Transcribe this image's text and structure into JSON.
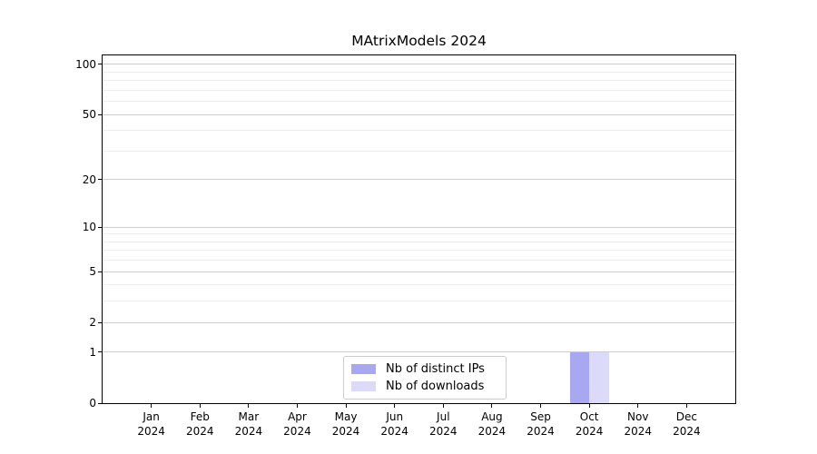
{
  "title": "MAtrixModels 2024",
  "chart_data": {
    "type": "bar",
    "title": "MAtrixModels 2024",
    "categories": [
      "Jan",
      "Feb",
      "Mar",
      "Apr",
      "May",
      "Jun",
      "Jul",
      "Aug",
      "Sep",
      "Oct",
      "Nov",
      "Dec"
    ],
    "category_year": "2024",
    "series": [
      {
        "name": "Nb of distinct IPs",
        "color": "#a8a8f2",
        "values": [
          0,
          0,
          0,
          0,
          0,
          0,
          0,
          0,
          0,
          1,
          0,
          0
        ]
      },
      {
        "name": "Nb of downloads",
        "color": "#dbdbf9",
        "values": [
          0,
          0,
          0,
          0,
          0,
          0,
          0,
          0,
          0,
          1,
          0,
          0
        ]
      }
    ],
    "yscale": "log1p",
    "ylim": [
      0,
      113
    ],
    "y_major_ticks": [
      0,
      1,
      2,
      5,
      10,
      20,
      50,
      100
    ],
    "y_minor_ticks": [
      3,
      4,
      6,
      7,
      8,
      9,
      30,
      40,
      60,
      70,
      80,
      90
    ],
    "grid": true,
    "legend_position": "bottom-center",
    "xlabel": "",
    "ylabel": ""
  },
  "colors": {
    "grid_major": "#cdcdcd",
    "grid_minor": "#ececec",
    "axis": "#000000",
    "legend_border": "#cccccc"
  }
}
